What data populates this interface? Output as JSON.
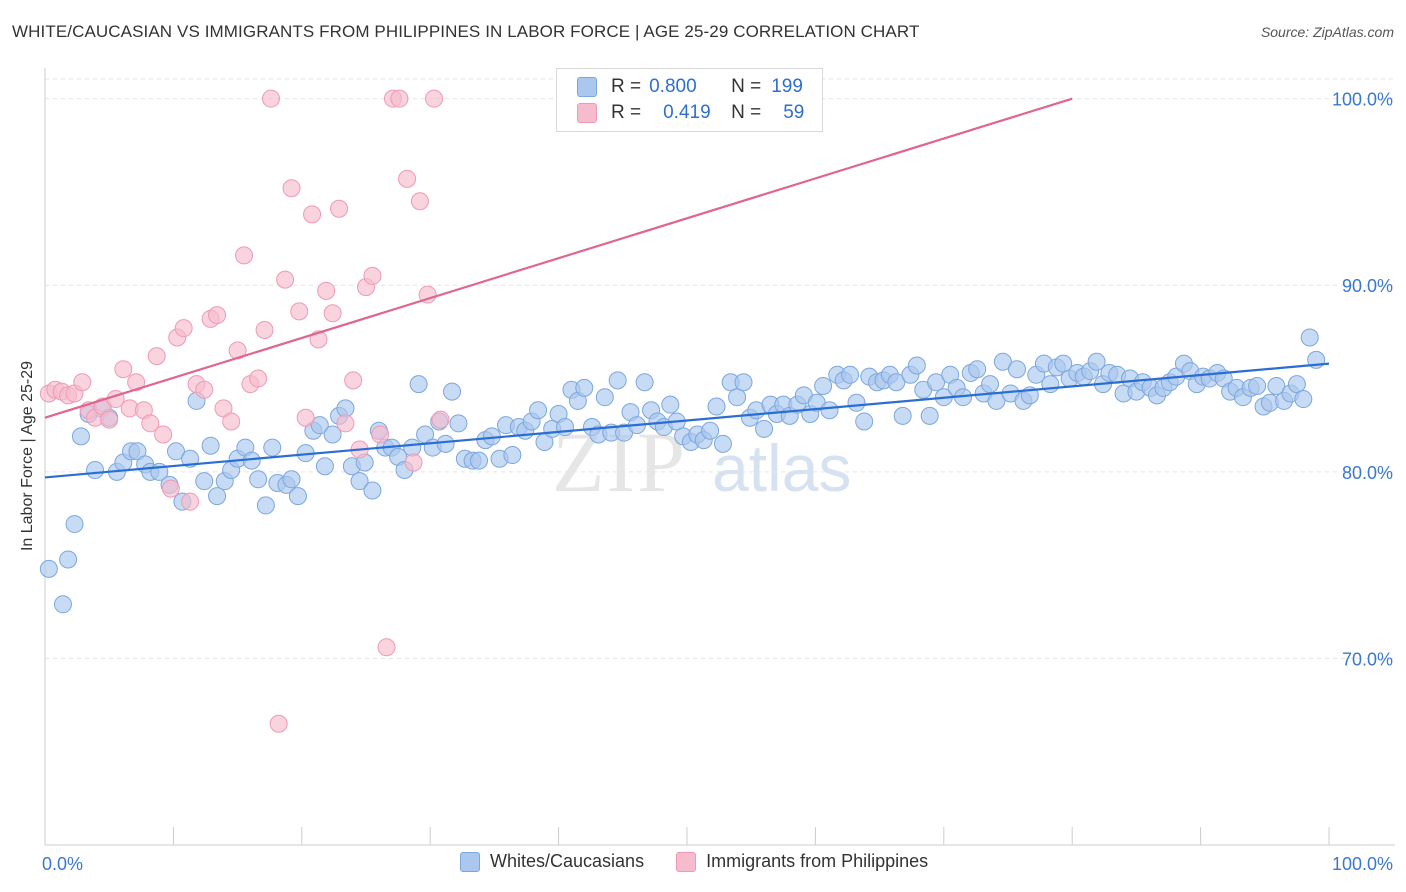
{
  "title": "WHITE/CAUCASIAN VS IMMIGRANTS FROM PHILIPPINES IN LABOR FORCE | AGE 25-29 CORRELATION CHART",
  "source": "Source: ZipAtlas.com",
  "watermark": {
    "zip": "ZIP",
    "atlas": "atlas"
  },
  "legend": {
    "rows": [
      {
        "r_label": "R =",
        "r_value": "0.800",
        "n_label": "N =",
        "n_value": "199"
      },
      {
        "r_label": "R =",
        "r_value": "0.419",
        "n_label": "N =",
        "n_value": "59"
      }
    ]
  },
  "bottom_legend": [
    "Whites/Caucasians",
    "Immigrants from Philippines"
  ],
  "colors": {
    "blue_fill": "#aac8ee",
    "blue_stroke": "#7ba7de",
    "blue_line": "#2b6ed3",
    "pink_fill": "#f6bccd",
    "pink_stroke": "#ef9ab4",
    "pink_line": "#e0658f",
    "tick_label": "#3a78cf",
    "grid": "#e3e3e3"
  },
  "chart_data": {
    "type": "scatter",
    "xlabel": "",
    "ylabel": "In Labor Force | Age 25-29",
    "xlim": [
      0,
      100
    ],
    "ylim": [
      60,
      101
    ],
    "x_tick_labels": [
      "0.0%",
      "100.0%"
    ],
    "y_ticks": [
      70,
      80,
      90,
      100
    ],
    "y_tick_labels": [
      "70.0%",
      "80.0%",
      "90.0%",
      "100.0%"
    ],
    "grid": true,
    "series": [
      {
        "name": "Whites/Caucasians",
        "R": 0.8,
        "N": 199,
        "trend": {
          "x": [
            0,
            100
          ],
          "y": [
            79.7,
            85.8
          ]
        },
        "points": [
          [
            0.3,
            74.8
          ],
          [
            1.4,
            72.9
          ],
          [
            1.8,
            75.3
          ],
          [
            2.3,
            77.2
          ],
          [
            2.8,
            81.9
          ],
          [
            3.4,
            83.1
          ],
          [
            3.9,
            80.1
          ],
          [
            4.4,
            83.4
          ],
          [
            5.0,
            82.9
          ],
          [
            5.6,
            80.0
          ],
          [
            6.1,
            80.5
          ],
          [
            6.7,
            81.1
          ],
          [
            7.2,
            81.1
          ],
          [
            7.8,
            80.4
          ],
          [
            8.2,
            80.0
          ],
          [
            8.9,
            80.0
          ],
          [
            9.7,
            79.3
          ],
          [
            10.2,
            81.1
          ],
          [
            10.7,
            78.4
          ],
          [
            11.3,
            80.7
          ],
          [
            11.8,
            83.8
          ],
          [
            12.4,
            79.5
          ],
          [
            12.9,
            81.4
          ],
          [
            13.4,
            78.7
          ],
          [
            14.0,
            79.5
          ],
          [
            14.5,
            80.1
          ],
          [
            15.0,
            80.7
          ],
          [
            15.6,
            81.3
          ],
          [
            16.1,
            80.6
          ],
          [
            16.6,
            79.6
          ],
          [
            17.2,
            78.2
          ],
          [
            17.7,
            81.3
          ],
          [
            18.1,
            79.4
          ],
          [
            18.8,
            79.3
          ],
          [
            19.2,
            79.6
          ],
          [
            19.7,
            78.7
          ],
          [
            20.3,
            81.0
          ],
          [
            20.9,
            82.2
          ],
          [
            21.4,
            82.5
          ],
          [
            21.8,
            80.3
          ],
          [
            22.4,
            82.0
          ],
          [
            22.9,
            83.0
          ],
          [
            23.4,
            83.4
          ],
          [
            23.9,
            80.3
          ],
          [
            24.5,
            79.5
          ],
          [
            24.9,
            80.5
          ],
          [
            25.5,
            79.0
          ],
          [
            26.0,
            82.2
          ],
          [
            26.5,
            81.3
          ],
          [
            27.0,
            81.3
          ],
          [
            27.5,
            80.8
          ],
          [
            28.0,
            80.1
          ],
          [
            28.6,
            81.3
          ],
          [
            29.1,
            84.7
          ],
          [
            29.6,
            82.0
          ],
          [
            30.2,
            81.3
          ],
          [
            30.7,
            82.7
          ],
          [
            31.2,
            81.5
          ],
          [
            31.7,
            84.3
          ],
          [
            32.2,
            82.6
          ],
          [
            32.7,
            80.7
          ],
          [
            33.3,
            80.6
          ],
          [
            33.8,
            80.6
          ],
          [
            34.3,
            81.7
          ],
          [
            34.8,
            81.9
          ],
          [
            35.4,
            80.7
          ],
          [
            35.9,
            82.5
          ],
          [
            36.4,
            80.9
          ],
          [
            36.9,
            82.4
          ],
          [
            37.4,
            82.2
          ],
          [
            37.9,
            82.7
          ],
          [
            38.4,
            83.3
          ],
          [
            38.9,
            81.6
          ],
          [
            39.5,
            82.3
          ],
          [
            40.0,
            83.1
          ],
          [
            40.5,
            82.4
          ],
          [
            41.0,
            84.4
          ],
          [
            41.5,
            83.8
          ],
          [
            42.0,
            84.5
          ],
          [
            42.6,
            82.4
          ],
          [
            43.1,
            82.0
          ],
          [
            43.6,
            84.0
          ],
          [
            44.1,
            82.1
          ],
          [
            44.6,
            84.9
          ],
          [
            45.1,
            82.1
          ],
          [
            45.6,
            83.2
          ],
          [
            46.1,
            82.5
          ],
          [
            46.7,
            84.8
          ],
          [
            47.2,
            83.3
          ],
          [
            47.7,
            82.7
          ],
          [
            48.2,
            82.4
          ],
          [
            48.7,
            83.6
          ],
          [
            49.2,
            82.7
          ],
          [
            49.7,
            81.9
          ],
          [
            50.3,
            81.6
          ],
          [
            50.8,
            82.0
          ],
          [
            51.3,
            81.7
          ],
          [
            51.8,
            82.2
          ],
          [
            52.3,
            83.5
          ],
          [
            52.8,
            81.5
          ],
          [
            53.4,
            84.8
          ],
          [
            53.9,
            84.0
          ],
          [
            54.4,
            84.8
          ],
          [
            54.9,
            82.9
          ],
          [
            55.4,
            83.3
          ],
          [
            56.0,
            82.3
          ],
          [
            56.5,
            83.6
          ],
          [
            57.0,
            83.1
          ],
          [
            57.5,
            83.6
          ],
          [
            58.0,
            83.0
          ],
          [
            58.6,
            83.6
          ],
          [
            59.1,
            84.1
          ],
          [
            59.6,
            83.1
          ],
          [
            60.1,
            83.7
          ],
          [
            60.6,
            84.6
          ],
          [
            61.1,
            83.3
          ],
          [
            61.7,
            85.2
          ],
          [
            62.2,
            84.9
          ],
          [
            62.7,
            85.2
          ],
          [
            63.2,
            83.7
          ],
          [
            63.8,
            82.7
          ],
          [
            64.2,
            85.1
          ],
          [
            64.8,
            84.8
          ],
          [
            65.3,
            84.9
          ],
          [
            65.8,
            85.2
          ],
          [
            66.3,
            84.8
          ],
          [
            66.8,
            83.0
          ],
          [
            67.4,
            85.2
          ],
          [
            67.9,
            85.7
          ],
          [
            68.4,
            84.4
          ],
          [
            68.9,
            83.0
          ],
          [
            69.4,
            84.8
          ],
          [
            70.0,
            84.0
          ],
          [
            70.5,
            85.2
          ],
          [
            71.0,
            84.5
          ],
          [
            71.5,
            84.0
          ],
          [
            72.1,
            85.3
          ],
          [
            72.6,
            85.5
          ],
          [
            73.1,
            84.2
          ],
          [
            73.6,
            84.7
          ],
          [
            74.1,
            83.8
          ],
          [
            74.6,
            85.9
          ],
          [
            75.2,
            84.2
          ],
          [
            75.7,
            85.5
          ],
          [
            76.2,
            83.8
          ],
          [
            76.7,
            84.1
          ],
          [
            77.2,
            85.2
          ],
          [
            77.8,
            85.8
          ],
          [
            78.3,
            84.7
          ],
          [
            78.8,
            85.6
          ],
          [
            79.3,
            85.8
          ],
          [
            79.8,
            85.0
          ],
          [
            80.4,
            85.3
          ],
          [
            80.9,
            85.1
          ],
          [
            81.4,
            85.4
          ],
          [
            81.9,
            85.9
          ],
          [
            82.4,
            84.7
          ],
          [
            82.9,
            85.3
          ],
          [
            83.5,
            85.2
          ],
          [
            84.0,
            84.2
          ],
          [
            84.5,
            85.0
          ],
          [
            85.0,
            84.3
          ],
          [
            85.5,
            84.8
          ],
          [
            86.1,
            84.5
          ],
          [
            86.6,
            84.1
          ],
          [
            87.1,
            84.5
          ],
          [
            87.6,
            84.8
          ],
          [
            88.1,
            85.1
          ],
          [
            88.7,
            85.8
          ],
          [
            89.2,
            85.4
          ],
          [
            89.7,
            84.7
          ],
          [
            90.2,
            85.1
          ],
          [
            90.7,
            85.0
          ],
          [
            91.3,
            85.3
          ],
          [
            91.8,
            85.0
          ],
          [
            92.3,
            84.3
          ],
          [
            92.8,
            84.5
          ],
          [
            93.3,
            84.0
          ],
          [
            93.9,
            84.5
          ],
          [
            94.4,
            84.6
          ],
          [
            94.9,
            83.5
          ],
          [
            95.4,
            83.7
          ],
          [
            95.9,
            84.6
          ],
          [
            96.5,
            83.8
          ],
          [
            97.0,
            84.2
          ],
          [
            97.5,
            84.7
          ],
          [
            98.0,
            83.9
          ],
          [
            98.5,
            87.2
          ],
          [
            99.0,
            86.0
          ]
        ]
      },
      {
        "name": "Immigrants from Philippines",
        "R": 0.419,
        "N": 59,
        "trend": {
          "x": [
            0,
            80
          ],
          "y": [
            82.9,
            100.0
          ]
        },
        "points": [
          [
            0.3,
            84.2
          ],
          [
            0.8,
            84.4
          ],
          [
            1.3,
            84.3
          ],
          [
            1.8,
            84.1
          ],
          [
            2.3,
            84.2
          ],
          [
            2.9,
            84.8
          ],
          [
            3.4,
            83.3
          ],
          [
            3.9,
            82.9
          ],
          [
            4.5,
            83.5
          ],
          [
            5.0,
            82.8
          ],
          [
            5.5,
            83.9
          ],
          [
            6.1,
            85.5
          ],
          [
            6.6,
            83.4
          ],
          [
            7.1,
            84.8
          ],
          [
            7.7,
            83.3
          ],
          [
            8.2,
            82.6
          ],
          [
            8.7,
            86.2
          ],
          [
            9.2,
            82.0
          ],
          [
            9.8,
            79.1
          ],
          [
            10.3,
            87.2
          ],
          [
            10.8,
            87.7
          ],
          [
            11.3,
            78.4
          ],
          [
            11.8,
            84.7
          ],
          [
            12.4,
            84.4
          ],
          [
            12.9,
            88.2
          ],
          [
            13.4,
            88.4
          ],
          [
            13.9,
            83.4
          ],
          [
            14.5,
            82.7
          ],
          [
            15.0,
            86.5
          ],
          [
            15.5,
            91.6
          ],
          [
            16.0,
            84.7
          ],
          [
            16.6,
            85.0
          ],
          [
            17.1,
            87.6
          ],
          [
            17.6,
            100.0
          ],
          [
            18.2,
            66.5
          ],
          [
            18.7,
            90.3
          ],
          [
            19.2,
            95.2
          ],
          [
            19.8,
            88.6
          ],
          [
            20.3,
            82.9
          ],
          [
            20.8,
            93.8
          ],
          [
            21.3,
            87.1
          ],
          [
            21.9,
            89.7
          ],
          [
            22.4,
            88.5
          ],
          [
            22.9,
            94.1
          ],
          [
            23.4,
            82.6
          ],
          [
            24.0,
            84.9
          ],
          [
            24.5,
            81.2
          ],
          [
            25.0,
            89.9
          ],
          [
            25.5,
            90.5
          ],
          [
            26.1,
            82.0
          ],
          [
            26.6,
            70.6
          ],
          [
            27.1,
            100.0
          ],
          [
            27.6,
            100.0
          ],
          [
            28.2,
            95.7
          ],
          [
            28.7,
            80.5
          ],
          [
            29.2,
            94.5
          ],
          [
            29.8,
            89.5
          ],
          [
            30.3,
            100.0
          ],
          [
            30.8,
            82.8
          ]
        ]
      }
    ]
  }
}
